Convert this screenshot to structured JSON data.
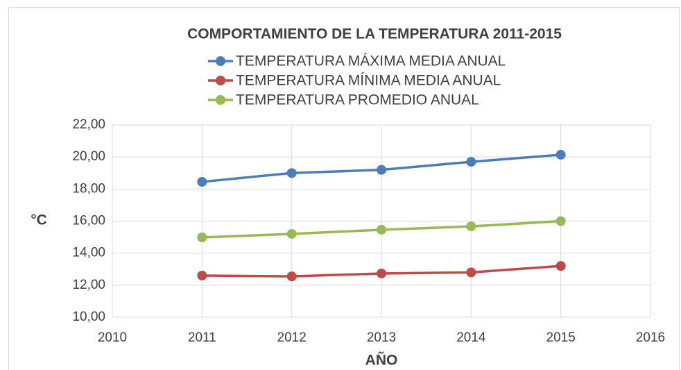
{
  "chart_data": {
    "type": "line",
    "title": "COMPORTAMIENTO DE LA TEMPERATURA 2011-2015",
    "x_label": "AÑO",
    "y_label": "°C",
    "x": [
      2011,
      2012,
      2013,
      2014,
      2015
    ],
    "series": [
      {
        "name": "TEMPERATURA MÁXIMA MEDIA ANUAL",
        "color": "#4a7ebb",
        "values": [
          18.45,
          19.0,
          19.2,
          19.7,
          20.14
        ]
      },
      {
        "name": "TEMPERATURA MÍNIMA MEDIA ANUAL",
        "color": "#be4b48",
        "values": [
          12.6,
          12.55,
          12.73,
          12.8,
          13.2
        ]
      },
      {
        "name": "TEMPERATURA PROMEDIO ANUAL",
        "color": "#98b954",
        "values": [
          14.98,
          15.2,
          15.46,
          15.67,
          16.0
        ]
      }
    ],
    "xlim": [
      2010,
      2016
    ],
    "xticks": [
      2010,
      2011,
      2012,
      2013,
      2014,
      2015,
      2016
    ],
    "ylim": [
      10,
      22
    ],
    "yticks": [
      {
        "value": 10,
        "label": "10,00"
      },
      {
        "value": 12,
        "label": "12,00"
      },
      {
        "value": 14,
        "label": "14,00"
      },
      {
        "value": 16,
        "label": "16,00"
      },
      {
        "value": 18,
        "label": "18,00"
      },
      {
        "value": 20,
        "label": "20,00"
      },
      {
        "value": 22,
        "label": "22,00"
      }
    ],
    "grid": true,
    "legend": "top"
  }
}
